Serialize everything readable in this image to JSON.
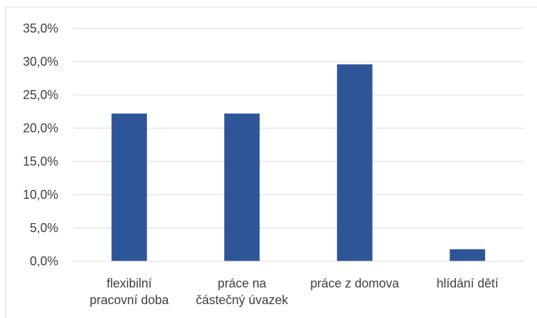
{
  "chart_data": {
    "type": "bar",
    "categories": [
      [
        "flexibilní",
        "pracovní doba"
      ],
      [
        "práce na",
        "částečný úvazek"
      ],
      [
        "práce z domova"
      ],
      [
        "hlídání dětí"
      ]
    ],
    "values": [
      22.2,
      22.2,
      29.6,
      1.8
    ],
    "ylim": [
      0,
      35
    ],
    "yticks": [
      "0,0%",
      "5,0%",
      "10,0%",
      "15,0%",
      "20,0%",
      "25,0%",
      "30,0%",
      "35,0%"
    ],
    "grid": true,
    "legend": "none",
    "colors": {
      "bar": "#2E5597",
      "grid": "#D9D9D9",
      "text": "#404040",
      "frame": "#D9D9D9"
    }
  }
}
